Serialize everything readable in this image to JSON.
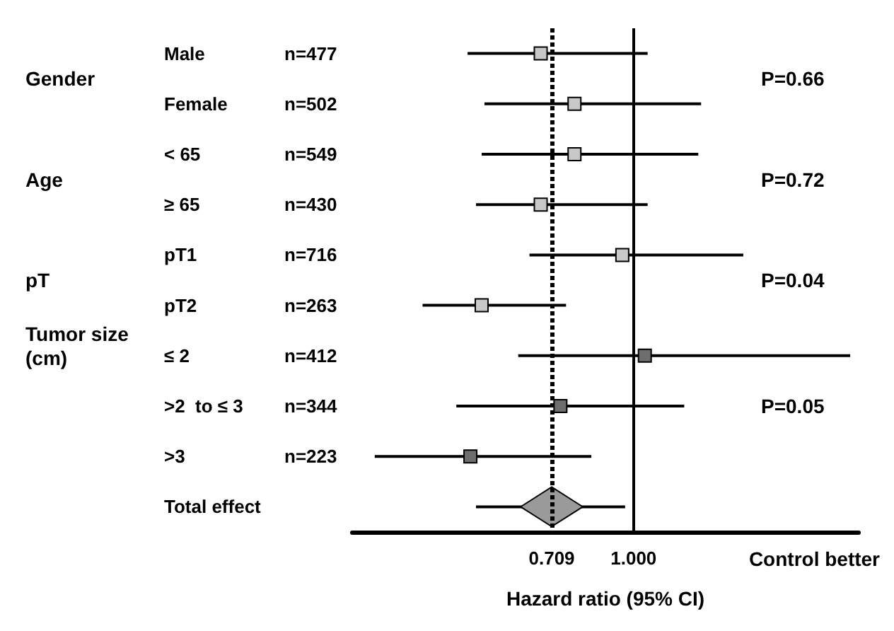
{
  "chart_data": {
    "type": "scatter",
    "orientation": "horizontal",
    "categories": [
      "Male",
      "Female",
      "< 65",
      "≥ 65",
      "pT1",
      "pT2",
      "≤ 2",
      ">2  to ≤ 3",
      ">3",
      "Total effect"
    ],
    "y2_categories": [
      "n=477",
      "n=502",
      "n=549",
      "n=430",
      "n=716",
      "n=263",
      "n=412",
      "n=344",
      "n=223",
      null
    ],
    "series": [
      {
        "marker": "square",
        "colors": [
          "#c8c8c8",
          "#c8c8c8",
          "#c8c8c8",
          "#c8c8c8",
          "#c8c8c8",
          "#c8c8c8",
          "#6e6e6e",
          "#6e6e6e",
          "#6e6e6e",
          null
        ],
        "values": [
          0.67,
          0.79,
          0.79,
          0.67,
          0.96,
          0.46,
          1.04,
          0.74,
          0.42,
          null
        ],
        "errors": [
          [
            0.41,
            1.05
          ],
          [
            0.47,
            1.24
          ],
          [
            0.46,
            1.23
          ],
          [
            0.44,
            1.05
          ],
          [
            0.63,
            1.39
          ],
          [
            0.25,
            0.76
          ],
          [
            0.59,
            1.77
          ],
          [
            0.37,
            1.18
          ],
          [
            0.08,
            0.85
          ],
          null
        ]
      },
      {
        "marker": "diamond",
        "color": "#9a9a9a",
        "values": [
          null,
          null,
          null,
          null,
          null,
          null,
          null,
          null,
          null,
          0.709
        ],
        "errors": [
          null,
          null,
          null,
          null,
          null,
          null,
          null,
          null,
          null,
          [
            0.44,
            0.97
          ]
        ]
      }
    ],
    "xlim": [
      0,
      1.8
    ],
    "xticks": [
      {
        "value": 0.709,
        "label": "0.709"
      },
      {
        "value": 1,
        "label": "1.000"
      }
    ],
    "xlabel": "Hazard ratio (95% CI)",
    "ref_lines": [
      {
        "axis": "x",
        "value": 0.709,
        "line_style": "dotted",
        "color": "#000000"
      },
      {
        "axis": "x",
        "value": 1,
        "line_style": "solid",
        "color": "#000000"
      }
    ],
    "annotations": [
      "Gender",
      "Age",
      "pT",
      "Tumor size\n(cm)",
      "P=0.66",
      "P=0.72",
      "P=0.04",
      "P=0.05",
      "Control better"
    ],
    "grid": false
  }
}
